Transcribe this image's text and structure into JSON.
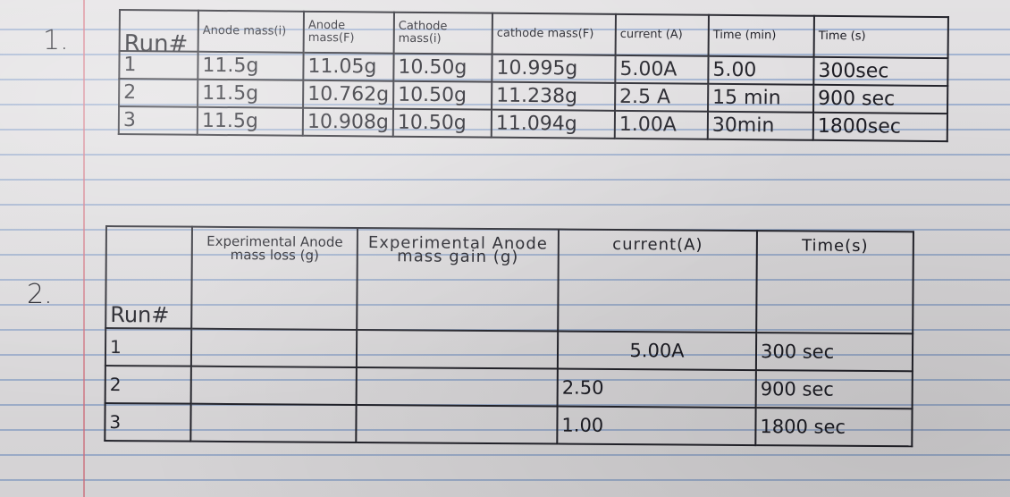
{
  "q1": {
    "number": "1.",
    "headers": [
      "Run#",
      "Anode mass(i)",
      "Anode mass(F)",
      "Cathode mass(i)",
      "cathode mass(F)",
      "current (A)",
      "Time (min)",
      "Time (s)"
    ],
    "rows": [
      [
        "1",
        "11.5g",
        "11.05g",
        "10.50g",
        "10.995g",
        "5.00A",
        "5.00",
        "300sec"
      ],
      [
        "2",
        "11.5g",
        "10.762g",
        "10.50g",
        "11.238g",
        "2.5 A",
        "15 min",
        "900 sec"
      ],
      [
        "3",
        "11.5g",
        "10.908g",
        "10.50g",
        "11.094g",
        "1.00A",
        "30min",
        "1800sec"
      ]
    ]
  },
  "q2": {
    "number": "2.",
    "headers": [
      "Run#",
      "Experimental Anode mass loss (g)",
      "Experimental Anode mass gain (g)",
      "current(A)",
      "Time(s)"
    ],
    "rows": [
      [
        "1",
        "",
        "",
        "5.00A",
        "300 sec"
      ],
      [
        "2",
        "",
        "",
        "2.50",
        "900 sec"
      ],
      [
        "3",
        "",
        "",
        "1.00",
        "1800 sec"
      ]
    ]
  }
}
